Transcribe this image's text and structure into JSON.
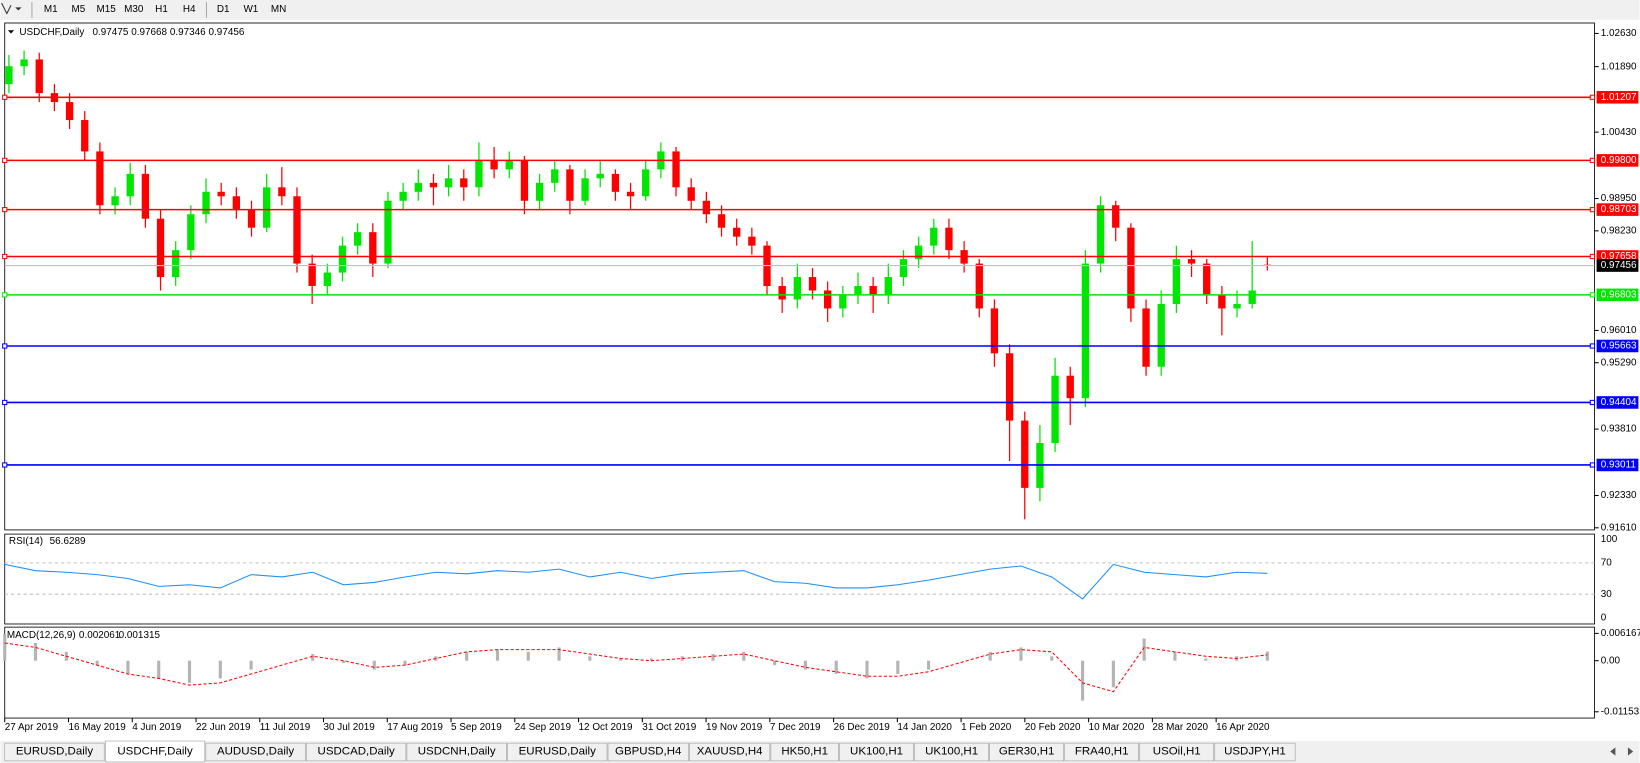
{
  "toolbar": {
    "timeframes": [
      "M1",
      "M5",
      "M15",
      "M30",
      "H1",
      "H4",
      "D1",
      "W1",
      "MN"
    ]
  },
  "chart_data": {
    "type": "candlestick",
    "symbol": "USDCHF,Daily",
    "up_color": "#00e600",
    "down_color": "#ff0000",
    "ylim": [
      0.91563,
      1.02863
    ],
    "yticks": [
      {
        "value": 1.0263,
        "label": "1.02630"
      },
      {
        "value": 1.0189,
        "label": "1.01890"
      },
      {
        "value": 1.0043,
        "label": "1.00430"
      },
      {
        "value": 0.9895,
        "label": "0.98950"
      },
      {
        "value": 0.9823,
        "label": "0.98230"
      },
      {
        "value": 0.9601,
        "label": "0.96010"
      },
      {
        "value": 0.9529,
        "label": "0.95290"
      },
      {
        "value": 0.9381,
        "label": "0.93810"
      },
      {
        "value": 0.9233,
        "label": "0.92330"
      },
      {
        "value": 0.9161,
        "label": "0.91610"
      }
    ],
    "levels": [
      {
        "value": 1.01207,
        "label": "1.01207",
        "color": "#ff0000"
      },
      {
        "value": 0.998,
        "label": "0.99800",
        "color": "#ff0000"
      },
      {
        "value": 0.98703,
        "label": "0.98703",
        "color": "#ff0000"
      },
      {
        "value": 0.97658,
        "label": "0.97658",
        "color": "#ff0000"
      },
      {
        "value": 0.96803,
        "label": "0.96803",
        "color": "#00e600"
      },
      {
        "value": 0.95663,
        "label": "0.95663",
        "color": "#0000ff"
      },
      {
        "value": 0.94404,
        "label": "0.94404",
        "color": "#0000ff"
      },
      {
        "value": 0.93011,
        "label": "0.93011",
        "color": "#0000ff"
      }
    ],
    "ohlc": [
      [
        1.015,
        1.0215,
        1.013,
        1.019
      ],
      [
        1.019,
        1.0225,
        1.017,
        1.0205
      ],
      [
        1.0205,
        1.022,
        1.011,
        1.013
      ],
      [
        1.013,
        1.015,
        1.009,
        1.011
      ],
      [
        1.011,
        1.013,
        1.005,
        1.007
      ],
      [
        1.007,
        1.009,
        0.998,
        1.0
      ],
      [
        1.0,
        1.002,
        0.986,
        0.988
      ],
      [
        0.988,
        0.992,
        0.986,
        0.99
      ],
      [
        0.99,
        0.9975,
        0.988,
        0.995
      ],
      [
        0.995,
        0.997,
        0.983,
        0.985
      ],
      [
        0.985,
        0.987,
        0.969,
        0.972
      ],
      [
        0.972,
        0.98,
        0.97,
        0.978
      ],
      [
        0.978,
        0.988,
        0.976,
        0.986
      ],
      [
        0.986,
        0.994,
        0.984,
        0.991
      ],
      [
        0.991,
        0.993,
        0.988,
        0.99
      ],
      [
        0.99,
        0.992,
        0.985,
        0.987
      ],
      [
        0.987,
        0.989,
        0.981,
        0.983
      ],
      [
        0.983,
        0.995,
        0.982,
        0.992
      ],
      [
        0.992,
        0.9965,
        0.988,
        0.99
      ],
      [
        0.99,
        0.992,
        0.973,
        0.975
      ],
      [
        0.975,
        0.977,
        0.966,
        0.97
      ],
      [
        0.97,
        0.975,
        0.968,
        0.973
      ],
      [
        0.973,
        0.981,
        0.971,
        0.979
      ],
      [
        0.979,
        0.984,
        0.977,
        0.982
      ],
      [
        0.982,
        0.984,
        0.972,
        0.975
      ],
      [
        0.975,
        0.991,
        0.974,
        0.989
      ],
      [
        0.989,
        0.993,
        0.987,
        0.991
      ],
      [
        0.991,
        0.996,
        0.989,
        0.993
      ],
      [
        0.993,
        0.995,
        0.988,
        0.992
      ],
      [
        0.992,
        0.997,
        0.99,
        0.994
      ],
      [
        0.994,
        0.996,
        0.989,
        0.992
      ],
      [
        0.992,
        1.002,
        0.99,
        0.998
      ],
      [
        0.998,
        1.001,
        0.994,
        0.996
      ],
      [
        0.996,
        1.0,
        0.994,
        0.998
      ],
      [
        0.998,
        0.999,
        0.986,
        0.989
      ],
      [
        0.989,
        0.995,
        0.987,
        0.993
      ],
      [
        0.993,
        0.998,
        0.991,
        0.996
      ],
      [
        0.996,
        0.997,
        0.986,
        0.989
      ],
      [
        0.989,
        0.996,
        0.988,
        0.994
      ],
      [
        0.994,
        0.998,
        0.992,
        0.995
      ],
      [
        0.995,
        0.996,
        0.989,
        0.991
      ],
      [
        0.991,
        0.993,
        0.987,
        0.99
      ],
      [
        0.99,
        0.998,
        0.989,
        0.996
      ],
      [
        0.996,
        1.002,
        0.994,
        1.0
      ],
      [
        1.0,
        1.001,
        0.99,
        0.992
      ],
      [
        0.992,
        0.994,
        0.987,
        0.989
      ],
      [
        0.989,
        0.991,
        0.984,
        0.986
      ],
      [
        0.986,
        0.988,
        0.981,
        0.983
      ],
      [
        0.983,
        0.985,
        0.979,
        0.981
      ],
      [
        0.981,
        0.983,
        0.977,
        0.979
      ],
      [
        0.979,
        0.98,
        0.968,
        0.97
      ],
      [
        0.97,
        0.972,
        0.964,
        0.967
      ],
      [
        0.967,
        0.975,
        0.965,
        0.972
      ],
      [
        0.972,
        0.974,
        0.967,
        0.969
      ],
      [
        0.969,
        0.971,
        0.962,
        0.965
      ],
      [
        0.965,
        0.97,
        0.963,
        0.968
      ],
      [
        0.968,
        0.973,
        0.966,
        0.97
      ],
      [
        0.97,
        0.972,
        0.964,
        0.968
      ],
      [
        0.968,
        0.975,
        0.966,
        0.972
      ],
      [
        0.972,
        0.978,
        0.97,
        0.976
      ],
      [
        0.976,
        0.981,
        0.974,
        0.979
      ],
      [
        0.979,
        0.985,
        0.977,
        0.983
      ],
      [
        0.983,
        0.985,
        0.976,
        0.978
      ],
      [
        0.978,
        0.98,
        0.973,
        0.975
      ],
      [
        0.975,
        0.976,
        0.963,
        0.965
      ],
      [
        0.965,
        0.967,
        0.952,
        0.955
      ],
      [
        0.955,
        0.957,
        0.931,
        0.94
      ],
      [
        0.94,
        0.942,
        0.918,
        0.925
      ],
      [
        0.925,
        0.939,
        0.922,
        0.935
      ],
      [
        0.935,
        0.954,
        0.933,
        0.95
      ],
      [
        0.95,
        0.952,
        0.939,
        0.945
      ],
      [
        0.945,
        0.978,
        0.943,
        0.975
      ],
      [
        0.975,
        0.99,
        0.973,
        0.988
      ],
      [
        0.988,
        0.989,
        0.98,
        0.983
      ],
      [
        0.983,
        0.984,
        0.962,
        0.965
      ],
      [
        0.965,
        0.967,
        0.95,
        0.952
      ],
      [
        0.952,
        0.969,
        0.95,
        0.966
      ],
      [
        0.966,
        0.979,
        0.964,
        0.976
      ],
      [
        0.976,
        0.978,
        0.972,
        0.975
      ],
      [
        0.975,
        0.976,
        0.966,
        0.968
      ],
      [
        0.968,
        0.97,
        0.959,
        0.965
      ],
      [
        0.965,
        0.969,
        0.963,
        0.966
      ],
      [
        0.966,
        0.98,
        0.965,
        0.969
      ],
      [
        0.97475,
        0.97668,
        0.97346,
        0.97456
      ]
    ],
    "dates": [
      "27 Apr 2019",
      "16 May 2019",
      "4 Jun 2019",
      "22 Jun 2019",
      "11 Jul 2019",
      "30 Jul 2019",
      "17 Aug 2019",
      "5 Sep 2019",
      "24 Sep 2019",
      "12 Oct 2019",
      "31 Oct 2019",
      "19 Nov 2019",
      "7 Dec 2019",
      "26 Dec 2019",
      "14 Jan 2020",
      "1 Feb 2020",
      "20 Feb 2020",
      "10 Mar 2020",
      "28 Mar 2020",
      "16 Apr 2020"
    ],
    "rsi": {
      "label": "RSI(14)",
      "color": "#1e90ff",
      "ylim": [
        0,
        100
      ],
      "yticks": [
        100,
        70,
        30,
        0
      ],
      "values": [
        68,
        60,
        58,
        55,
        50,
        40,
        42,
        38,
        55,
        52,
        58,
        42,
        45,
        52,
        58,
        56,
        60,
        58,
        62,
        52,
        58,
        50,
        56,
        58,
        60,
        46,
        44,
        38,
        38,
        42,
        48,
        55,
        62,
        66,
        52,
        24,
        68,
        58,
        55,
        52,
        58,
        56.6289
      ]
    },
    "macd": {
      "label": "MACD(12,26,9)",
      "hist_color": "#b4b4b4",
      "signal_color": "#ff0000",
      "ylim": [
        -0.012947,
        0.007583
      ],
      "yticks": [
        0.006167,
        {
          "value": 0,
          "label": "0.00"
        },
        -0.011531
      ],
      "hist": [
        0.006,
        0.004,
        0.002,
        -0.001,
        -0.003,
        -0.004,
        -0.005,
        -0.004,
        -0.002,
        0,
        0.0015,
        -0.0005,
        -0.002,
        -0.001,
        0.001,
        0.002,
        0.0025,
        0.002,
        0.003,
        0.001,
        0.0005,
        0.0005,
        0.001,
        0.0015,
        0.002,
        -0.001,
        -0.002,
        -0.003,
        -0.004,
        -0.003,
        -0.002,
        0,
        0.002,
        0.003,
        0.001,
        -0.009,
        -0.006,
        0.005,
        0.002,
        0.0005,
        0.001,
        0.002061
      ],
      "signal": [
        0.004,
        0.003,
        0.001,
        -0.001,
        -0.003,
        -0.004,
        -0.0055,
        -0.005,
        -0.003,
        -0.001,
        0.001,
        0,
        -0.0015,
        -0.001,
        0.0005,
        0.002,
        0.0025,
        0.0025,
        0.0025,
        0.0015,
        0.0005,
        0,
        0.0005,
        0.001,
        0.0015,
        0,
        -0.0015,
        -0.0025,
        -0.0035,
        -0.0035,
        -0.0025,
        -0.0005,
        0.0015,
        0.0025,
        0.002,
        -0.005,
        -0.007,
        0.003,
        0.002,
        0.001,
        0.0005,
        0.001315
      ]
    }
  },
  "tabs": {
    "active": 1,
    "items": [
      "EURUSD,Daily",
      "USDCHF,Daily",
      "AUDUSD,Daily",
      "USDCAD,Daily",
      "USDCNH,Daily",
      "EURUSD,Daily",
      "GBPUSD,H4",
      "XAUUSD,H4",
      "HK50,H1",
      "UK100,H1",
      "UK100,H1",
      "GER30,H1",
      "FRA40,H1",
      "USOil,H1",
      "USDJPY,H1"
    ]
  }
}
